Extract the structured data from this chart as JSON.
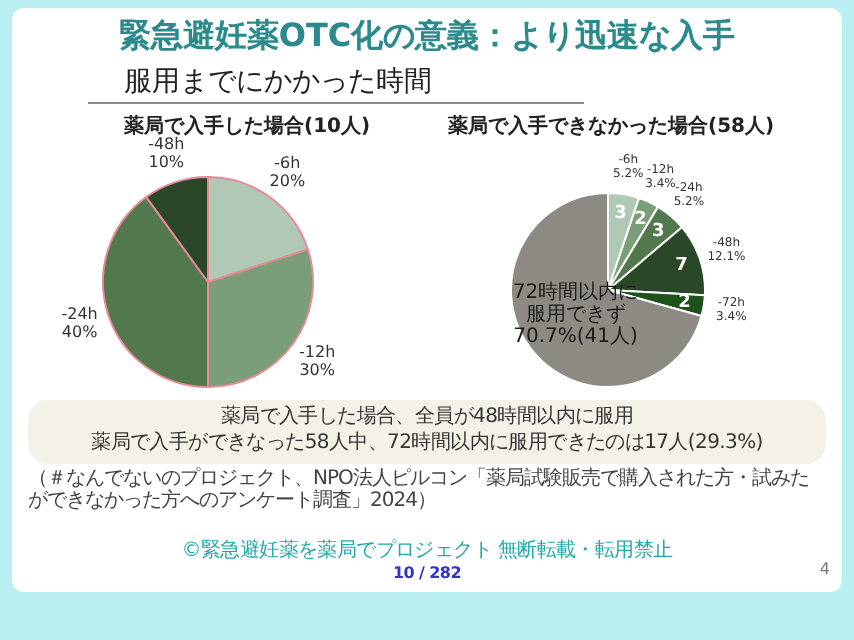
{
  "chart_data": [
    {
      "type": "other",
      "title": "緊急避妊薬OTC化の意義：より迅速な入手",
      "subtitle": "服用までにかかった時間",
      "annotations": [
        "薬局で入手した場合、全員が48時間以内に服用",
        "薬局で入手ができなった58人中、72時間以内に服用できたのは17人(29.3%)",
        "（＃なんでないのプロジェクト、NPO法人ピルコン「薬局試験販売で購入された方・試みたができなかった方へのアンケート調査」2024）",
        "©緊急避妊薬を薬局でプロジェクト 無断転載・転用禁止",
        "10 / 282",
        "4"
      ]
    },
    {
      "type": "pie",
      "title": "薬局で入手した場合(10人)",
      "categories": [
        "-6h",
        "-12h",
        "-24h",
        "-48h"
      ],
      "values": [
        20,
        30,
        40,
        10
      ],
      "value_labels": [
        "20%",
        "30%",
        "40%",
        "10%"
      ],
      "colors": [
        "#b0c9b4",
        "#7a9e78",
        "#52784d",
        "#2a4727"
      ]
    },
    {
      "type": "pie",
      "title": "薬局で入手できなかった場合(58人)",
      "categories": [
        "-6h 5.2%",
        "-12h 3.4%",
        "-24h 5.2%",
        "-48h 12.1%",
        "-72h 3.4%",
        "72時間以内に服用できず 70.7%(41人)"
      ],
      "values": [
        3,
        2,
        3,
        7,
        2,
        41
      ],
      "value_labels": [
        "3",
        "2",
        "3",
        "7",
        "2",
        null
      ],
      "colors": [
        "#b0c9b4",
        "#7a9e78",
        "#52784d",
        "#2a4727",
        "#1d521b",
        "#8d8a84"
      ]
    }
  ]
}
